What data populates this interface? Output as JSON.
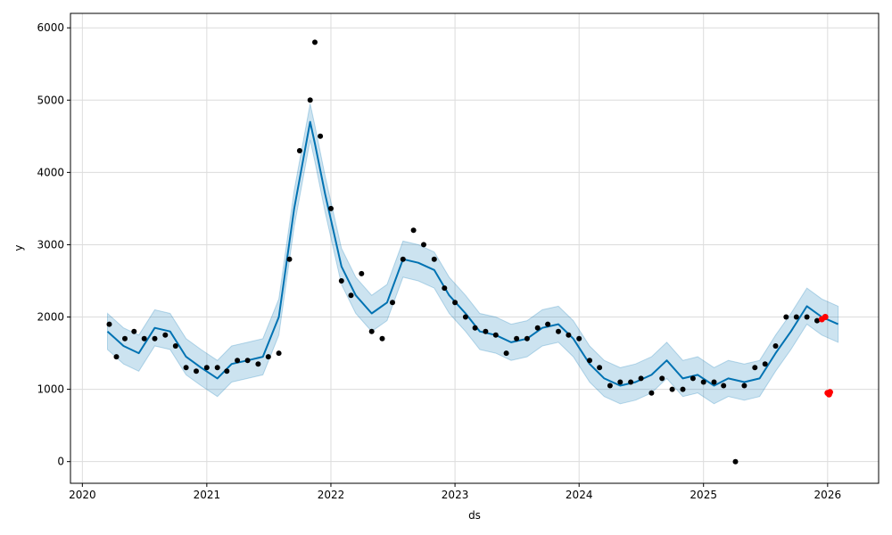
{
  "chart_data": {
    "type": "scatter",
    "title": "",
    "xlabel": "ds",
    "ylabel": "y",
    "xlim": [
      "2019-11-27",
      "2026-05-31"
    ],
    "ylim": [
      -300,
      6200
    ],
    "x_ticks": [
      "2020",
      "2021",
      "2022",
      "2023",
      "2024",
      "2025",
      "2026"
    ],
    "y_ticks": [
      0,
      1000,
      2000,
      3000,
      4000,
      5000,
      6000
    ],
    "grid": true,
    "legend": "none",
    "colors": {
      "observed": "#000000",
      "highlight": "#ff0000",
      "forecast_line": "#0072b2",
      "interval_fill": "#0072b2"
    },
    "forecast": {
      "ds": [
        "2020-03-15",
        "2020-05-01",
        "2020-06-15",
        "2020-08-01",
        "2020-09-15",
        "2020-11-01",
        "2020-12-15",
        "2021-02-01",
        "2021-03-15",
        "2021-05-01",
        "2021-06-15",
        "2021-08-01",
        "2021-09-15",
        "2021-11-01",
        "2021-11-15",
        "2021-12-15",
        "2022-02-01",
        "2022-03-15",
        "2022-05-01",
        "2022-06-15",
        "2022-08-01",
        "2022-09-15",
        "2022-11-01",
        "2022-12-15",
        "2023-02-01",
        "2023-03-15",
        "2023-05-01",
        "2023-06-15",
        "2023-08-01",
        "2023-09-15",
        "2023-11-01",
        "2023-12-15",
        "2024-02-01",
        "2024-03-15",
        "2024-05-01",
        "2024-06-15",
        "2024-08-01",
        "2024-09-15",
        "2024-11-01",
        "2024-12-15",
        "2025-02-01",
        "2025-03-15",
        "2025-05-01",
        "2025-06-15",
        "2025-08-01",
        "2025-09-15",
        "2025-11-01",
        "2025-12-15",
        "2026-02-01"
      ],
      "yhat": [
        1800,
        1600,
        1500,
        1850,
        1800,
        1450,
        1300,
        1150,
        1350,
        1400,
        1450,
        2000,
        3500,
        4700,
        4400,
        3700,
        2700,
        2300,
        2050,
        2200,
        2800,
        2750,
        2650,
        2300,
        2050,
        1800,
        1750,
        1650,
        1700,
        1850,
        1900,
        1700,
        1350,
        1150,
        1050,
        1100,
        1200,
        1400,
        1150,
        1200,
        1050,
        1150,
        1100,
        1150,
        1500,
        1800,
        2150,
        2000,
        1900
      ],
      "lower": [
        1550,
        1350,
        1250,
        1600,
        1550,
        1200,
        1050,
        900,
        1100,
        1150,
        1200,
        1750,
        3250,
        4450,
        4150,
        3450,
        2450,
        2050,
        1800,
        1950,
        2550,
        2500,
        2400,
        2050,
        1800,
        1550,
        1500,
        1400,
        1450,
        1600,
        1650,
        1450,
        1100,
        900,
        800,
        850,
        950,
        1150,
        900,
        950,
        800,
        900,
        850,
        900,
        1250,
        1550,
        1900,
        1750,
        1650
      ],
      "upper": [
        2050,
        1850,
        1750,
        2100,
        2050,
        1700,
        1550,
        1400,
        1600,
        1650,
        1700,
        2250,
        3750,
        4950,
        4650,
        3950,
        2950,
        2550,
        2300,
        2450,
        3050,
        3000,
        2900,
        2550,
        2300,
        2050,
        2000,
        1900,
        1950,
        2100,
        2150,
        1950,
        1600,
        1400,
        1300,
        1350,
        1450,
        1650,
        1400,
        1450,
        1300,
        1400,
        1350,
        1400,
        1750,
        2050,
        2400,
        2250,
        2150
      ]
    },
    "observed": {
      "ds": [
        "2020-03-20",
        "2020-04-10",
        "2020-05-05",
        "2020-06-01",
        "2020-07-01",
        "2020-08-01",
        "2020-09-01",
        "2020-10-01",
        "2020-11-01",
        "2020-12-01",
        "2021-01-01",
        "2021-02-01",
        "2021-03-01",
        "2021-04-01",
        "2021-05-01",
        "2021-06-01",
        "2021-07-01",
        "2021-08-01",
        "2021-09-01",
        "2021-10-01",
        "2021-11-01",
        "2021-11-15",
        "2021-12-01",
        "2022-01-01",
        "2022-02-01",
        "2022-03-01",
        "2022-04-01",
        "2022-05-01",
        "2022-06-01",
        "2022-07-01",
        "2022-08-01",
        "2022-09-01",
        "2022-10-01",
        "2022-11-01",
        "2022-12-01",
        "2023-01-01",
        "2023-02-01",
        "2023-03-01",
        "2023-04-01",
        "2023-05-01",
        "2023-06-01",
        "2023-07-01",
        "2023-08-01",
        "2023-09-01",
        "2023-10-01",
        "2023-11-01",
        "2023-12-01",
        "2024-01-01",
        "2024-02-01",
        "2024-03-01",
        "2024-04-01",
        "2024-05-01",
        "2024-06-01",
        "2024-07-01",
        "2024-08-01",
        "2024-09-01",
        "2024-10-01",
        "2024-11-01",
        "2024-12-01",
        "2025-01-01",
        "2025-02-01",
        "2025-03-01",
        "2025-04-05",
        "2025-05-01",
        "2025-06-01",
        "2025-07-01",
        "2025-08-01",
        "2025-09-01",
        "2025-10-01",
        "2025-11-01",
        "2025-12-01"
      ],
      "y": [
        1900,
        1450,
        1700,
        1800,
        1700,
        1700,
        1750,
        1600,
        1300,
        1250,
        1300,
        1300,
        1250,
        1400,
        1400,
        1350,
        1450,
        1500,
        2800,
        4300,
        5000,
        5800,
        4500,
        3500,
        2500,
        2300,
        2600,
        1800,
        1700,
        2200,
        2800,
        3200,
        3000,
        2800,
        2400,
        2200,
        2000,
        1850,
        1800,
        1750,
        1500,
        1700,
        1700,
        1850,
        1900,
        1800,
        1750,
        1700,
        1400,
        1300,
        1050,
        1100,
        1100,
        1150,
        950,
        1150,
        1000,
        1000,
        1150,
        1100,
        1100,
        1050,
        0,
        1050,
        1300,
        1350,
        1600,
        2000,
        2000,
        2000,
        1950
      ]
    },
    "highlight": {
      "ds": [
        "2025-12-15",
        "2025-12-25",
        "2026-01-01",
        "2026-01-05",
        "2026-01-08"
      ],
      "y": [
        1970,
        2000,
        950,
        930,
        960
      ]
    }
  }
}
